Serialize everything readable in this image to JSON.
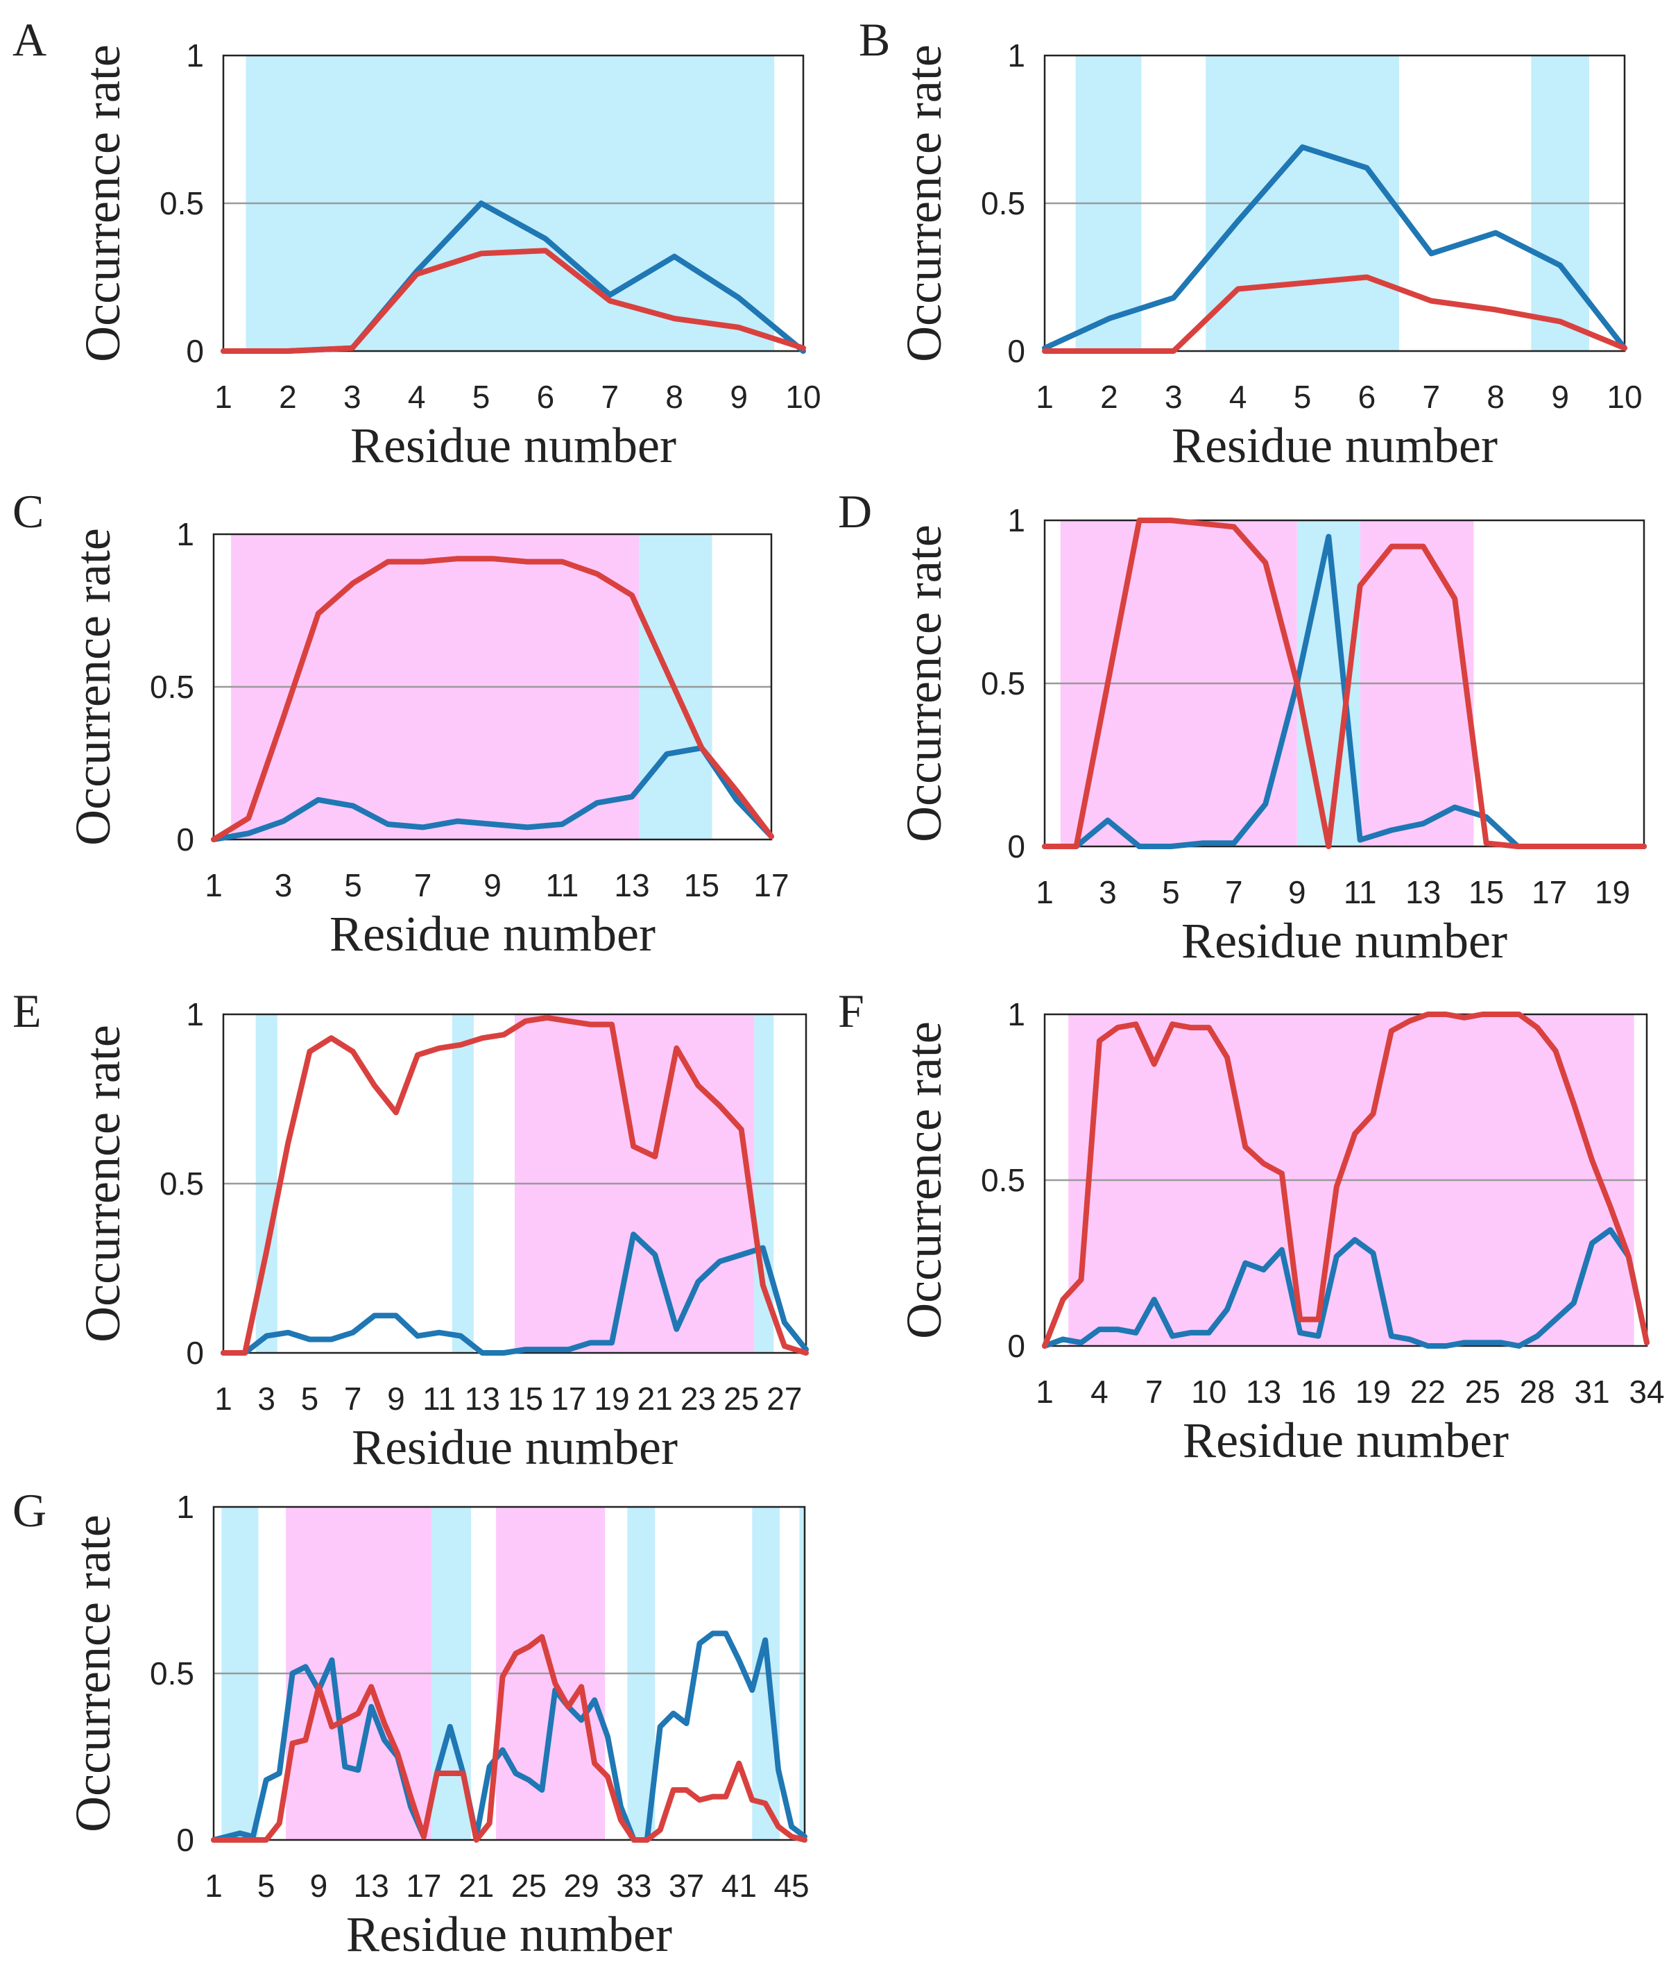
{
  "colors": {
    "helix_shade": "#c3eefc",
    "strand_shade": "#fdc9fb",
    "series_blue": "#1f77b4",
    "series_red": "#d9413f"
  },
  "chart_data": [
    {
      "panel": "A",
      "type": "line",
      "xlabel": "Residue number",
      "ylabel": "Occurrence rate",
      "xlim": [
        1,
        10
      ],
      "ylim": [
        0,
        1
      ],
      "yticks": [
        "0",
        "0.5",
        "1"
      ],
      "xticks": [
        "1",
        "2",
        "3",
        "4",
        "5",
        "6",
        "7",
        "8",
        "9",
        "10"
      ],
      "shaded_regions": [
        {
          "start": 1.35,
          "end": 9.55,
          "kind": "helix"
        }
      ],
      "x": [
        1,
        2,
        3,
        4,
        5,
        6,
        7,
        8,
        9,
        10
      ],
      "series": [
        {
          "name": "blue",
          "values": [
            0,
            0,
            0.01,
            0.27,
            0.5,
            0.38,
            0.19,
            0.32,
            0.18,
            0
          ]
        },
        {
          "name": "red",
          "values": [
            0,
            0,
            0.01,
            0.26,
            0.33,
            0.34,
            0.17,
            0.11,
            0.08,
            0.01
          ]
        }
      ]
    },
    {
      "panel": "B",
      "type": "line",
      "xlabel": "Residue number",
      "ylabel": "Occurrence rate",
      "xlim": [
        1,
        10
      ],
      "ylim": [
        0,
        1
      ],
      "yticks": [
        "0",
        "0.5",
        "1"
      ],
      "xticks": [
        "1",
        "2",
        "3",
        "4",
        "5",
        "6",
        "7",
        "8",
        "9",
        "10"
      ],
      "shaded_regions": [
        {
          "start": 1.48,
          "end": 2.5,
          "kind": "helix"
        },
        {
          "start": 3.5,
          "end": 6.5,
          "kind": "helix"
        },
        {
          "start": 8.55,
          "end": 9.45,
          "kind": "helix"
        }
      ],
      "x": [
        1,
        2,
        3,
        4,
        5,
        6,
        7,
        8,
        9,
        10
      ],
      "series": [
        {
          "name": "blue",
          "values": [
            0.01,
            0.11,
            0.18,
            0.44,
            0.69,
            0.62,
            0.33,
            0.4,
            0.29,
            0.01
          ]
        },
        {
          "name": "red",
          "values": [
            0,
            0,
            0,
            0.21,
            0.23,
            0.25,
            0.17,
            0.14,
            0.1,
            0.01
          ]
        }
      ]
    },
    {
      "panel": "C",
      "type": "line",
      "xlabel": "Residue number",
      "ylabel": "Occurrence rate",
      "xlim": [
        1,
        17
      ],
      "ylim": [
        0,
        1
      ],
      "yticks": [
        "0",
        "0.5",
        "1"
      ],
      "xticks": [
        "1",
        "3",
        "5",
        "7",
        "9",
        "11",
        "13",
        "15",
        "17"
      ],
      "shaded_regions": [
        {
          "start": 1.5,
          "end": 13.2,
          "kind": "strand"
        },
        {
          "start": 13.2,
          "end": 15.3,
          "kind": "helix"
        }
      ],
      "x": [
        1,
        2,
        3,
        4,
        5,
        6,
        7,
        8,
        9,
        10,
        11,
        12,
        13,
        14,
        15,
        16,
        17
      ],
      "series": [
        {
          "name": "blue",
          "values": [
            0,
            0.02,
            0.06,
            0.13,
            0.11,
            0.05,
            0.04,
            0.06,
            0.05,
            0.04,
            0.05,
            0.12,
            0.14,
            0.28,
            0.3,
            0.13,
            0.01
          ]
        },
        {
          "name": "red",
          "values": [
            0,
            0.07,
            0.4,
            0.74,
            0.84,
            0.91,
            0.91,
            0.92,
            0.92,
            0.91,
            0.91,
            0.87,
            0.8,
            0.55,
            0.3,
            0.16,
            0.01
          ]
        }
      ]
    },
    {
      "panel": "D",
      "type": "line",
      "xlabel": "Residue number",
      "ylabel": "Occurrence rate",
      "xlim": [
        1,
        20
      ],
      "ylim": [
        0,
        1
      ],
      "yticks": [
        "0",
        "0.5",
        "1"
      ],
      "xticks": [
        "1",
        "3",
        "5",
        "7",
        "9",
        "11",
        "13",
        "15",
        "17",
        "19"
      ],
      "shaded_regions": [
        {
          "start": 1.5,
          "end": 9.0,
          "kind": "strand"
        },
        {
          "start": 9.0,
          "end": 11.0,
          "kind": "helix"
        },
        {
          "start": 11.0,
          "end": 14.6,
          "kind": "strand"
        }
      ],
      "x": [
        1,
        2,
        3,
        4,
        5,
        6,
        7,
        8,
        9,
        10,
        11,
        12,
        13,
        14,
        15,
        16,
        17,
        18,
        19,
        20
      ],
      "series": [
        {
          "name": "blue",
          "values": [
            0,
            0,
            0.08,
            0,
            0,
            0.01,
            0.01,
            0.13,
            0.5,
            0.95,
            0.02,
            0.05,
            0.07,
            0.12,
            0.09,
            0,
            0,
            0,
            0,
            0
          ]
        },
        {
          "name": "red",
          "values": [
            0,
            0,
            0.5,
            1.0,
            1.0,
            0.99,
            0.98,
            0.87,
            0.5,
            0,
            0.8,
            0.92,
            0.92,
            0.76,
            0.01,
            0,
            0,
            0,
            0,
            0
          ]
        }
      ]
    },
    {
      "panel": "E",
      "type": "line",
      "xlabel": "Residue number",
      "ylabel": "Occurrence rate",
      "xlim": [
        1,
        28
      ],
      "ylim": [
        0,
        1
      ],
      "yticks": [
        "0",
        "0.5",
        "1"
      ],
      "xticks": [
        "1",
        "3",
        "5",
        "7",
        "9",
        "11",
        "13",
        "15",
        "17",
        "19",
        "21",
        "23",
        "25",
        "27"
      ],
      "shaded_regions": [
        {
          "start": 2.5,
          "end": 3.5,
          "kind": "helix"
        },
        {
          "start": 11.6,
          "end": 12.6,
          "kind": "helix"
        },
        {
          "start": 14.5,
          "end": 25.6,
          "kind": "strand"
        },
        {
          "start": 25.6,
          "end": 26.5,
          "kind": "helix"
        }
      ],
      "x": [
        1,
        2,
        3,
        4,
        5,
        6,
        7,
        8,
        9,
        10,
        11,
        12,
        13,
        14,
        15,
        16,
        17,
        18,
        19,
        20,
        21,
        22,
        23,
        24,
        25,
        26,
        27,
        28
      ],
      "series": [
        {
          "name": "blue",
          "values": [
            0,
            0,
            0.05,
            0.06,
            0.04,
            0.04,
            0.06,
            0.11,
            0.11,
            0.05,
            0.06,
            0.05,
            0,
            0,
            0.01,
            0.01,
            0.01,
            0.03,
            0.03,
            0.35,
            0.29,
            0.07,
            0.21,
            0.27,
            0.29,
            0.31,
            0.09,
            0.01
          ]
        },
        {
          "name": "red",
          "values": [
            0,
            0,
            0.3,
            0.62,
            0.89,
            0.93,
            0.89,
            0.79,
            0.71,
            0.88,
            0.9,
            0.91,
            0.93,
            0.94,
            0.98,
            0.99,
            0.98,
            0.97,
            0.97,
            0.61,
            0.58,
            0.9,
            0.79,
            0.73,
            0.66,
            0.2,
            0.02,
            0
          ]
        }
      ]
    },
    {
      "panel": "F",
      "type": "line",
      "xlabel": "Residue number",
      "ylabel": "Occurrence rate",
      "xlim": [
        1,
        34
      ],
      "ylim": [
        0,
        1
      ],
      "yticks": [
        "0",
        "0.5",
        "1"
      ],
      "xticks": [
        "1",
        "4",
        "7",
        "10",
        "13",
        "16",
        "19",
        "22",
        "25",
        "28",
        "31",
        "34"
      ],
      "shaded_regions": [
        {
          "start": 2.3,
          "end": 33.3,
          "kind": "strand"
        }
      ],
      "x": [
        1,
        2,
        3,
        4,
        5,
        6,
        7,
        8,
        9,
        10,
        11,
        12,
        13,
        14,
        15,
        16,
        17,
        18,
        19,
        20,
        21,
        22,
        23,
        24,
        25,
        26,
        27,
        28,
        29,
        30,
        31,
        32,
        33,
        34
      ],
      "series": [
        {
          "name": "blue",
          "values": [
            0,
            0.02,
            0.01,
            0.05,
            0.05,
            0.04,
            0.14,
            0.03,
            0.04,
            0.04,
            0.11,
            0.25,
            0.23,
            0.29,
            0.04,
            0.03,
            0.27,
            0.32,
            0.28,
            0.03,
            0.02,
            0,
            0,
            0.01,
            0.01,
            0.01,
            0,
            0.03,
            0.08,
            0.13,
            0.31,
            0.35,
            0.27,
            0.01
          ]
        },
        {
          "name": "red",
          "values": [
            0,
            0.14,
            0.2,
            0.92,
            0.96,
            0.97,
            0.85,
            0.97,
            0.96,
            0.96,
            0.87,
            0.6,
            0.55,
            0.52,
            0.08,
            0.08,
            0.48,
            0.64,
            0.7,
            0.95,
            0.98,
            1.0,
            1.0,
            0.99,
            1.0,
            1.0,
            1.0,
            0.96,
            0.89,
            0.73,
            0.56,
            0.42,
            0.27,
            0.01
          ]
        }
      ]
    },
    {
      "panel": "G",
      "type": "line",
      "xlabel": "Residue number",
      "ylabel": "Occurrence rate",
      "xlim": [
        1,
        46
      ],
      "ylim": [
        0,
        1
      ],
      "yticks": [
        "0",
        "0.5",
        "1"
      ],
      "xticks": [
        "1",
        "5",
        "9",
        "13",
        "17",
        "21",
        "25",
        "29",
        "33",
        "37",
        "41",
        "45"
      ],
      "shaded_regions": [
        {
          "start": 1.6,
          "end": 4.4,
          "kind": "helix"
        },
        {
          "start": 6.5,
          "end": 17.6,
          "kind": "strand"
        },
        {
          "start": 17.6,
          "end": 20.6,
          "kind": "helix"
        },
        {
          "start": 22.5,
          "end": 30.8,
          "kind": "strand"
        },
        {
          "start": 32.5,
          "end": 34.6,
          "kind": "helix"
        },
        {
          "start": 42.0,
          "end": 44.1,
          "kind": "helix"
        },
        {
          "start": 45.6,
          "end": 46.0,
          "kind": "helix"
        }
      ],
      "x": [
        1,
        2,
        3,
        4,
        5,
        6,
        7,
        8,
        9,
        10,
        11,
        12,
        13,
        14,
        15,
        16,
        17,
        18,
        19,
        20,
        21,
        22,
        23,
        24,
        25,
        26,
        27,
        28,
        29,
        30,
        31,
        32,
        33,
        34,
        35,
        36,
        37,
        38,
        39,
        40,
        41,
        42,
        43,
        44,
        45,
        46
      ],
      "series": [
        {
          "name": "blue",
          "values": [
            0,
            0.01,
            0.02,
            0.01,
            0.18,
            0.2,
            0.5,
            0.52,
            0.45,
            0.54,
            0.22,
            0.21,
            0.4,
            0.3,
            0.25,
            0.1,
            0.01,
            0.2,
            0.34,
            0.2,
            0.01,
            0.22,
            0.27,
            0.2,
            0.18,
            0.15,
            0.45,
            0.4,
            0.36,
            0.42,
            0.31,
            0.1,
            0,
            0,
            0.34,
            0.38,
            0.35,
            0.59,
            0.62,
            0.62,
            0.54,
            0.45,
            0.6,
            0.21,
            0.04,
            0.01
          ]
        },
        {
          "name": "red",
          "values": [
            0,
            0,
            0,
            0,
            0,
            0.05,
            0.29,
            0.3,
            0.46,
            0.34,
            0.36,
            0.38,
            0.46,
            0.35,
            0.26,
            0.13,
            0.01,
            0.2,
            0.2,
            0.2,
            0,
            0.05,
            0.49,
            0.56,
            0.58,
            0.61,
            0.47,
            0.4,
            0.46,
            0.23,
            0.19,
            0.06,
            0,
            0,
            0.03,
            0.15,
            0.15,
            0.12,
            0.13,
            0.13,
            0.23,
            0.12,
            0.11,
            0.04,
            0.01,
            0
          ]
        }
      ]
    }
  ]
}
